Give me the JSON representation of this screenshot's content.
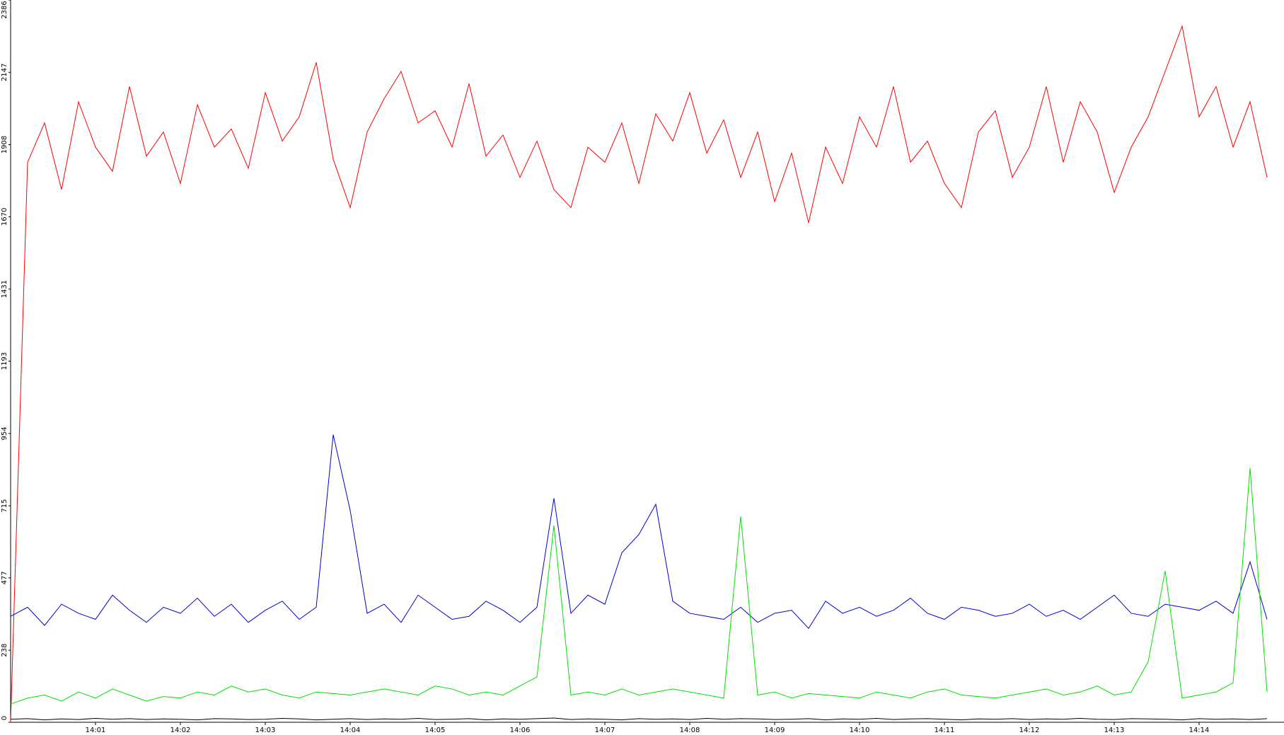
{
  "chart_data": {
    "type": "line",
    "xlim": [
      0,
      15
    ],
    "xticks": [
      {
        "value": 1,
        "label": "14:01"
      },
      {
        "value": 2,
        "label": "14:02"
      },
      {
        "value": 3,
        "label": "14:03"
      },
      {
        "value": 4,
        "label": "14:04"
      },
      {
        "value": 5,
        "label": "14:05"
      },
      {
        "value": 6,
        "label": "14:06"
      },
      {
        "value": 7,
        "label": "14:07"
      },
      {
        "value": 8,
        "label": "14:08"
      },
      {
        "value": 9,
        "label": "14:09"
      },
      {
        "value": 10,
        "label": "14:10"
      },
      {
        "value": 11,
        "label": "14:11"
      },
      {
        "value": 12,
        "label": "14:12"
      },
      {
        "value": 13,
        "label": "14:13"
      },
      {
        "value": 14,
        "label": "14:14"
      }
    ],
    "ylim": [
      0,
      2386
    ],
    "yticks": [
      0,
      238,
      477,
      715,
      954,
      1193,
      1431,
      1670,
      1908,
      2147,
      2386
    ],
    "grid": false,
    "x": [
      0,
      0.2,
      0.4,
      0.6,
      0.8,
      1,
      1.2,
      1.4,
      1.6,
      1.8,
      2,
      2.2,
      2.4,
      2.6,
      2.8,
      3,
      3.2,
      3.4,
      3.6,
      3.8,
      4,
      4.2,
      4.4,
      4.6,
      4.8,
      5,
      5.2,
      5.4,
      5.6,
      5.8,
      6,
      6.2,
      6.4,
      6.6,
      6.8,
      7,
      7.2,
      7.4,
      7.6,
      7.8,
      8,
      8.2,
      8.4,
      8.6,
      8.8,
      9,
      9.2,
      9.4,
      9.6,
      9.8,
      10,
      10.2,
      10.4,
      10.6,
      10.8,
      11,
      11.2,
      11.4,
      11.6,
      11.8,
      12,
      12.2,
      12.4,
      12.6,
      12.8,
      13,
      13.2,
      13.4,
      13.6,
      13.8,
      14,
      14.2,
      14.4,
      14.6,
      14.8
    ],
    "series": [
      {
        "color": "#ff0000",
        "values": [
          0,
          1850,
          1980,
          1760,
          2050,
          1900,
          1820,
          2100,
          1870,
          1950,
          1780,
          2040,
          1900,
          1960,
          1830,
          2080,
          1920,
          2000,
          2180,
          1860,
          1700,
          1950,
          2060,
          2150,
          1980,
          2020,
          1900,
          2110,
          1870,
          1940,
          1800,
          1920,
          1760,
          1700,
          1900,
          1850,
          1980,
          1780,
          2010,
          1920,
          2080,
          1880,
          1990,
          1800,
          1950,
          1720,
          1880,
          1650,
          1900,
          1780,
          2000,
          1900,
          2100,
          1850,
          1920,
          1780,
          1700,
          1950,
          2020,
          1800,
          1900,
          2100,
          1850,
          2050,
          1950,
          1750,
          1900,
          2000,
          2150,
          2300,
          2000,
          2100,
          1900,
          2050,
          1800
        ]
      },
      {
        "color": "#0000cc",
        "values": [
          350,
          380,
          320,
          390,
          360,
          340,
          420,
          370,
          330,
          380,
          360,
          410,
          350,
          390,
          330,
          370,
          400,
          340,
          380,
          950,
          700,
          360,
          390,
          330,
          420,
          380,
          340,
          350,
          400,
          370,
          330,
          380,
          740,
          360,
          420,
          390,
          560,
          620,
          720,
          400,
          360,
          350,
          340,
          380,
          330,
          360,
          370,
          310,
          400,
          360,
          380,
          350,
          370,
          410,
          360,
          340,
          380,
          370,
          350,
          360,
          390,
          350,
          370,
          340,
          380,
          420,
          360,
          350,
          390,
          380,
          370,
          400,
          360,
          530,
          340
        ]
      },
      {
        "color": "#00e000",
        "values": [
          60,
          80,
          90,
          70,
          100,
          80,
          110,
          90,
          70,
          85,
          80,
          100,
          90,
          120,
          100,
          110,
          90,
          80,
          100,
          95,
          90,
          100,
          110,
          100,
          90,
          120,
          110,
          90,
          100,
          90,
          120,
          150,
          650,
          90,
          100,
          90,
          110,
          90,
          100,
          110,
          100,
          90,
          80,
          680,
          90,
          100,
          80,
          95,
          90,
          85,
          80,
          100,
          90,
          80,
          100,
          110,
          90,
          85,
          80,
          90,
          100,
          110,
          90,
          100,
          120,
          90,
          100,
          200,
          500,
          80,
          90,
          100,
          130,
          840,
          100
        ]
      },
      {
        "color": "#000000",
        "values": [
          10,
          12,
          8,
          11,
          9,
          13,
          10,
          12,
          9,
          11,
          10,
          8,
          12,
          11,
          9,
          10,
          13,
          11,
          8,
          10,
          12,
          9,
          11,
          10,
          13,
          9,
          10,
          12,
          8,
          11,
          10,
          12,
          14,
          9,
          11,
          10,
          8,
          12,
          10,
          11,
          9,
          13,
          10,
          12,
          11,
          9,
          10,
          12,
          8,
          11,
          10,
          13,
          9,
          11,
          12,
          10,
          8,
          11,
          10,
          12,
          9,
          11,
          10,
          13,
          10,
          9,
          12,
          11,
          10,
          8,
          12,
          10,
          11,
          9,
          12
        ]
      }
    ]
  }
}
